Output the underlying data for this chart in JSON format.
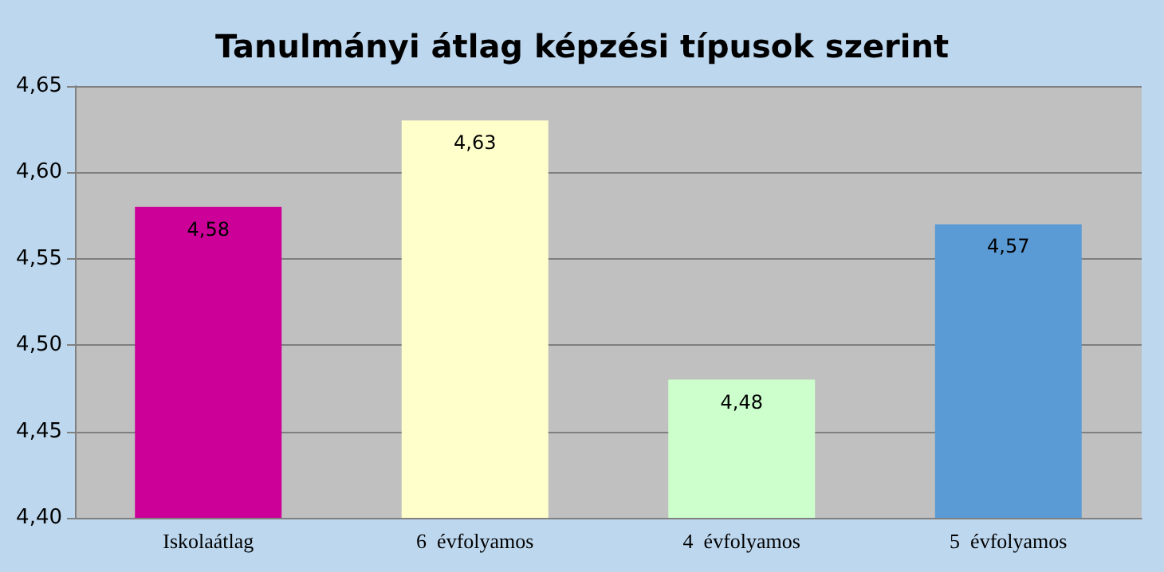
{
  "chart_data": {
    "type": "bar",
    "title": "Tanulmányi átlag képzési típusok szerint",
    "categories": [
      "Iskolaátlag",
      "6  évfolyamos",
      "4  évfolyamos",
      "5  évfolyamos"
    ],
    "values": [
      4.58,
      4.63,
      4.48,
      4.57
    ],
    "colors": [
      "#cc0099",
      "#ffffcc",
      "#ccffcc",
      "#5b9bd5"
    ],
    "value_labels": [
      "4,58",
      "4,63",
      "4,48",
      "4,57"
    ],
    "ylim": [
      4.4,
      4.65
    ],
    "yticks": [
      {
        "value": 4.4,
        "label": "4,40"
      },
      {
        "value": 4.45,
        "label": "4,45"
      },
      {
        "value": 4.5,
        "label": "4,50"
      },
      {
        "value": 4.55,
        "label": "4,55"
      },
      {
        "value": 4.6,
        "label": "4,60"
      },
      {
        "value": 4.65,
        "label": "4,65"
      }
    ],
    "grid": "y"
  }
}
